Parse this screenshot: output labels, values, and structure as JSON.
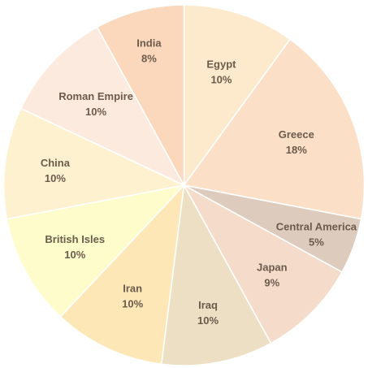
{
  "chart_data": {
    "type": "pie",
    "title": "",
    "start_angle_deg": 0,
    "direction": "clockwise",
    "slices": [
      {
        "label": "Egypt",
        "value": 10,
        "value_label": "10%",
        "color": "#fde9cc"
      },
      {
        "label": "Greece",
        "value": 18,
        "value_label": "18%",
        "color": "#fbdfc6"
      },
      {
        "label": "Central America",
        "value": 5,
        "value_label": "5%",
        "color": "#ddcbbd"
      },
      {
        "label": "Japan",
        "value": 9,
        "value_label": "9%",
        "color": "#f5dbc9"
      },
      {
        "label": "Iraq",
        "value": 10,
        "value_label": "10%",
        "color": "#eddfc3"
      },
      {
        "label": "Iran",
        "value": 10,
        "value_label": "10%",
        "color": "#fde7b6"
      },
      {
        "label": "British Isles",
        "value": 10,
        "value_label": "10%",
        "color": "#fdfcca"
      },
      {
        "label": "China",
        "value": 10,
        "value_label": "10%",
        "color": "#fdf1cf"
      },
      {
        "label": "Roman Empire",
        "value": 10,
        "value_label": "10%",
        "color": "#fdeade"
      },
      {
        "label": "India",
        "value": 8,
        "value_label": "8%",
        "color": "#fbd7bb"
      }
    ]
  }
}
